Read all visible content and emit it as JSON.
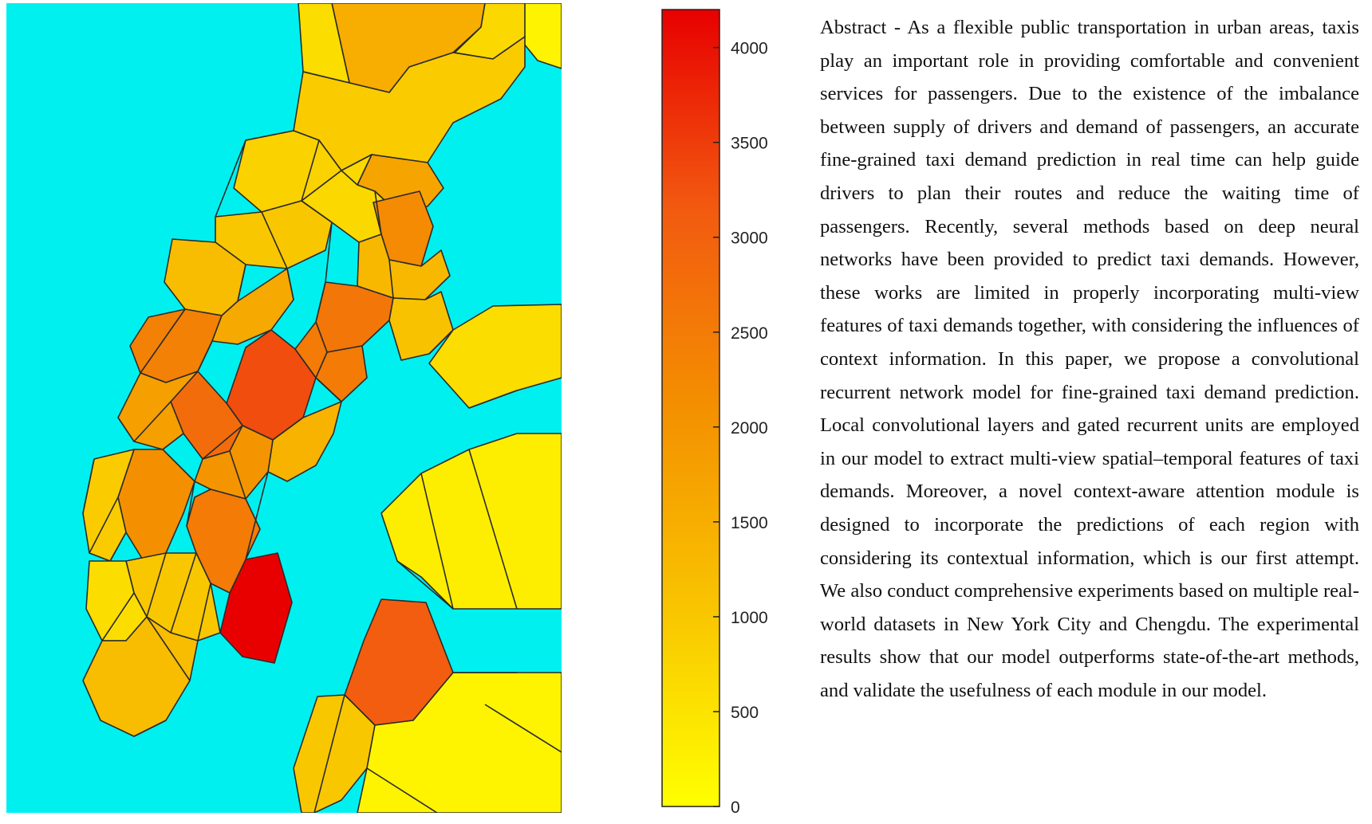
{
  "figure": {
    "map": {
      "water_color": "#00f0f0",
      "boundary_color": "#2a2a2a",
      "zones": [
        {
          "id": "north-east-corner",
          "level": 220
        },
        {
          "id": "north-upper-1",
          "level": 1500
        },
        {
          "id": "north-upper-2",
          "level": 700
        },
        {
          "id": "north-upper-3",
          "level": 600
        },
        {
          "id": "north-mid-1",
          "level": 900
        },
        {
          "id": "north-mid-2",
          "level": 800
        },
        {
          "id": "north-mid-3",
          "level": 1700
        },
        {
          "id": "upper-west-1",
          "level": 1000
        },
        {
          "id": "upper-west-2",
          "level": 1200
        },
        {
          "id": "upper-east-1",
          "level": 700
        },
        {
          "id": "upper-east-2",
          "level": 2200
        },
        {
          "id": "upper-east-3",
          "level": 1300
        },
        {
          "id": "midtown-west-1",
          "level": 2400
        },
        {
          "id": "midtown-west-2",
          "level": 1600
        },
        {
          "id": "midtown-east-1",
          "level": 2600
        },
        {
          "id": "midtown-east-2",
          "level": 1100
        },
        {
          "id": "midtown-core-1",
          "level": 3300
        },
        {
          "id": "midtown-core-2",
          "level": 2500
        },
        {
          "id": "midtown-core-3",
          "level": 2800
        },
        {
          "id": "lower-mid-1",
          "level": 1800
        },
        {
          "id": "lower-mid-2",
          "level": 1400
        },
        {
          "id": "lower-mid-3",
          "level": 2000
        },
        {
          "id": "lower-west-1",
          "level": 2100
        },
        {
          "id": "lower-west-2",
          "level": 900
        },
        {
          "id": "lower-core-1",
          "level": 4200
        },
        {
          "id": "lower-core-2",
          "level": 2500
        },
        {
          "id": "lower-south-1",
          "level": 1000
        },
        {
          "id": "lower-south-2",
          "level": 600
        },
        {
          "id": "lower-tip",
          "level": 1200
        },
        {
          "id": "east-bank-1",
          "level": 600
        },
        {
          "id": "east-bank-2",
          "level": 300
        },
        {
          "id": "east-bank-3",
          "level": 3100
        },
        {
          "id": "east-bank-4",
          "level": 1000
        },
        {
          "id": "east-bank-5",
          "level": 200
        }
      ]
    },
    "colorbar": {
      "min": 0,
      "max": 4200,
      "ticks": [
        "0",
        "500",
        "1000",
        "1500",
        "2000",
        "2500",
        "3000",
        "3500",
        "4000"
      ],
      "tick_values": [
        0,
        500,
        1000,
        1500,
        2000,
        2500,
        3000,
        3500,
        4000
      ],
      "colors": [
        "#ffff00",
        "#f9c400",
        "#f49000",
        "#f25a10",
        "#e80000"
      ]
    }
  },
  "abstract": {
    "text": "Abstract - As a flexible public transportation in urban areas, taxis play an important role in providing comfortable and convenient services for passengers. Due to the existence of the imbalance between supply of drivers and demand of passengers, an accurate fine-grained taxi demand prediction in real time can help guide drivers to plan their routes and reduce the waiting time of passengers. Recently, several methods based on deep neural networks have been provided to predict taxi demands. However, these works are limited in properly incorporating multi-view features of taxi demands together, with considering the influences of context information. In this paper, we propose a convolutional recurrent network model for fine-grained taxi demand prediction. Local convolutional layers and gated recurrent units are employed in our model to extract multi-view spatial–temporal features of taxi demands. Moreover, a novel context-aware attention module is designed to incorporate the predictions of each region with considering its contextual information, which is our first attempt. We also conduct comprehensive experiments based on multiple real-world datasets in New York City and Chengdu. The experimental results show that our model outperforms state-of-the-art methods, and validate the usefulness of each module in our model."
  }
}
